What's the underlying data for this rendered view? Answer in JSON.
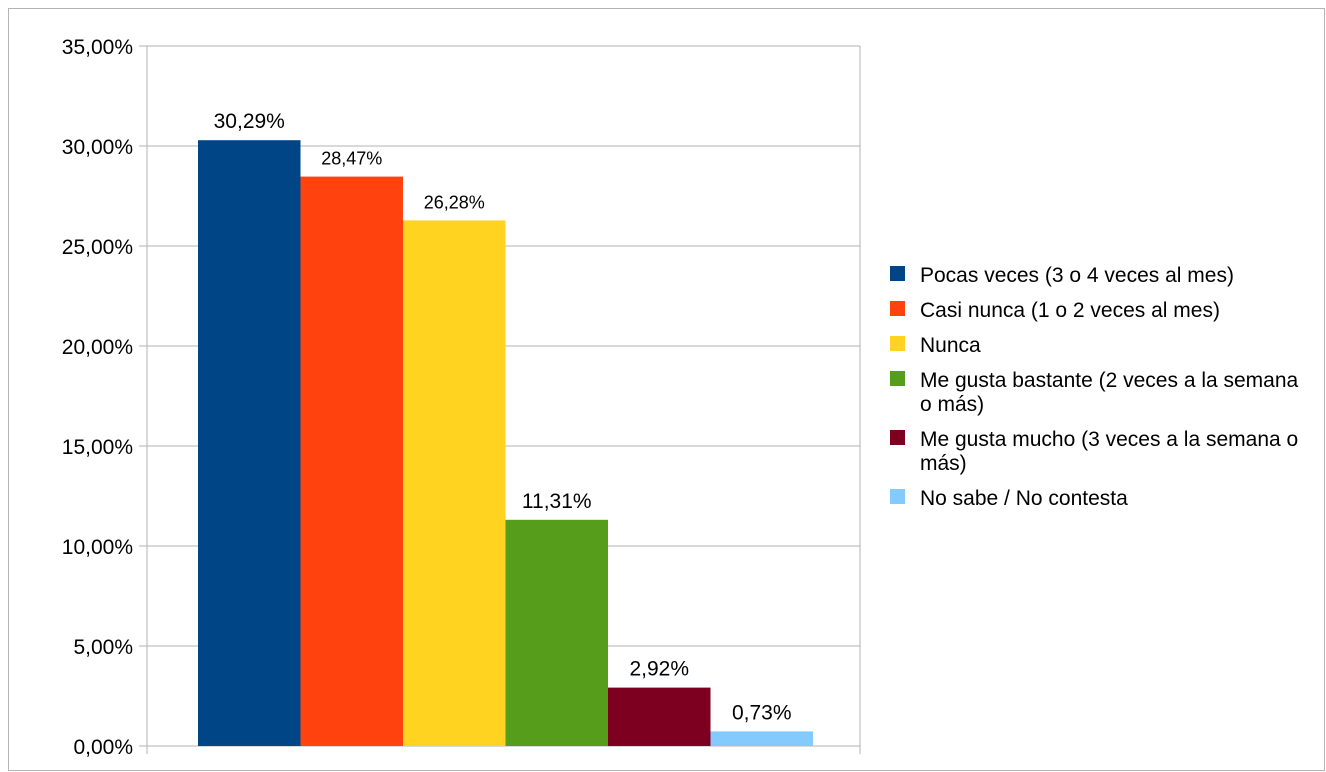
{
  "chart_data": {
    "type": "bar",
    "title": "",
    "xlabel": "",
    "ylabel": "",
    "ylim": [
      0,
      35
    ],
    "y_ticks": [
      0,
      5,
      10,
      15,
      20,
      25,
      30,
      35
    ],
    "y_tick_labels": [
      "0,00%",
      "5,00%",
      "10,00%",
      "15,00%",
      "20,00%",
      "25,00%",
      "30,00%",
      "35,00%"
    ],
    "grid": true,
    "legend_position": "right",
    "series": [
      {
        "name": "Pocas veces (3 o 4 veces al mes)",
        "value": 30.29,
        "label": "30,29%",
        "color": "#004586"
      },
      {
        "name": "Casi nunca (1 o 2 veces al mes)",
        "value": 28.47,
        "label": "28,47%",
        "color": "#ff420e"
      },
      {
        "name": "Nunca",
        "value": 26.28,
        "label": "26,28%",
        "color": "#ffd320"
      },
      {
        "name": "Me gusta bastante (2 veces a la semana o más)",
        "value": 11.31,
        "label": "11,31%",
        "color": "#579d1c"
      },
      {
        "name": "Me gusta mucho (3 veces a la semana o más)",
        "value": 2.92,
        "label": "2,92%",
        "color": "#7e0021"
      },
      {
        "name": "No sabe / No contesta",
        "value": 0.73,
        "label": "0,73%",
        "color": "#83caff"
      }
    ]
  }
}
